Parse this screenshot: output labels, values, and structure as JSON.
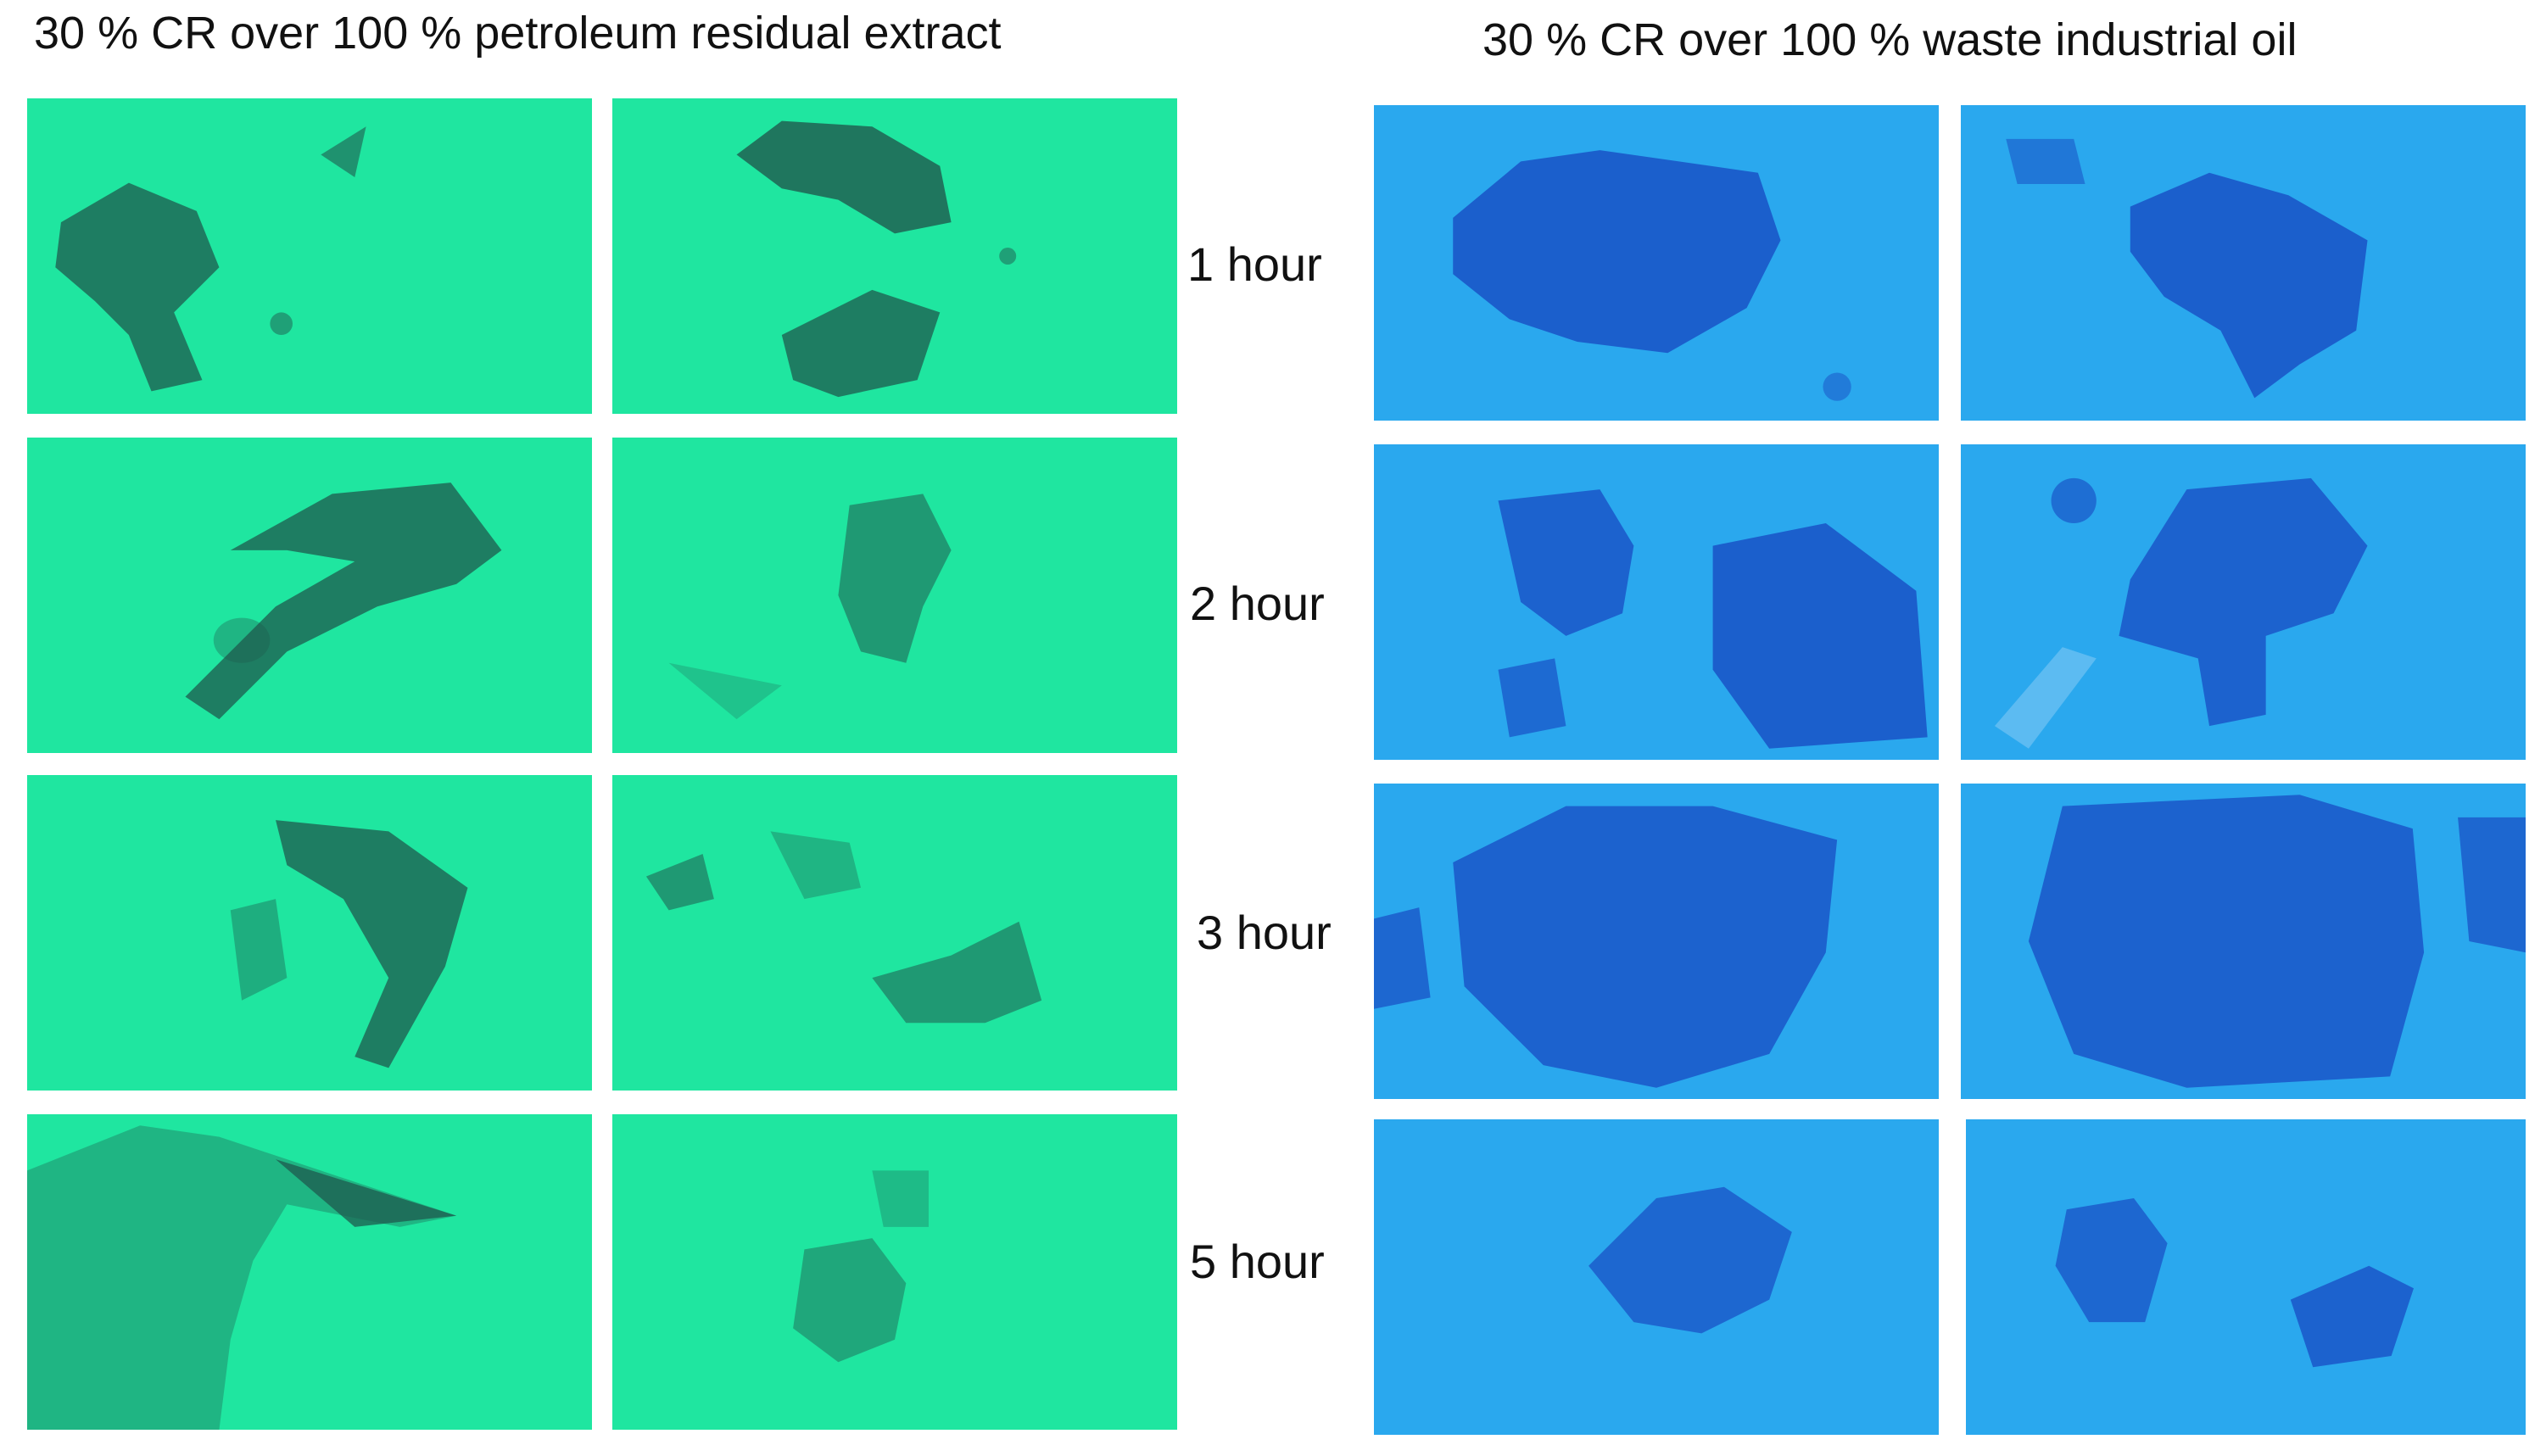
{
  "titles": {
    "left": "30 % CR over 100 % petroleum residual extract",
    "right": "30 % CR over 100 % waste industrial oil"
  },
  "time_labels": [
    "1 hour",
    "2 hour",
    "3 hour",
    "5 hour"
  ],
  "colors": {
    "left_background": "#1fe6a0",
    "left_blob": "#1f5a4e",
    "right_background": "#2aa8ee",
    "right_blob": "#1a56c8"
  },
  "panels": {
    "left_column_count": 2,
    "right_column_count": 2,
    "row_count": 4
  }
}
